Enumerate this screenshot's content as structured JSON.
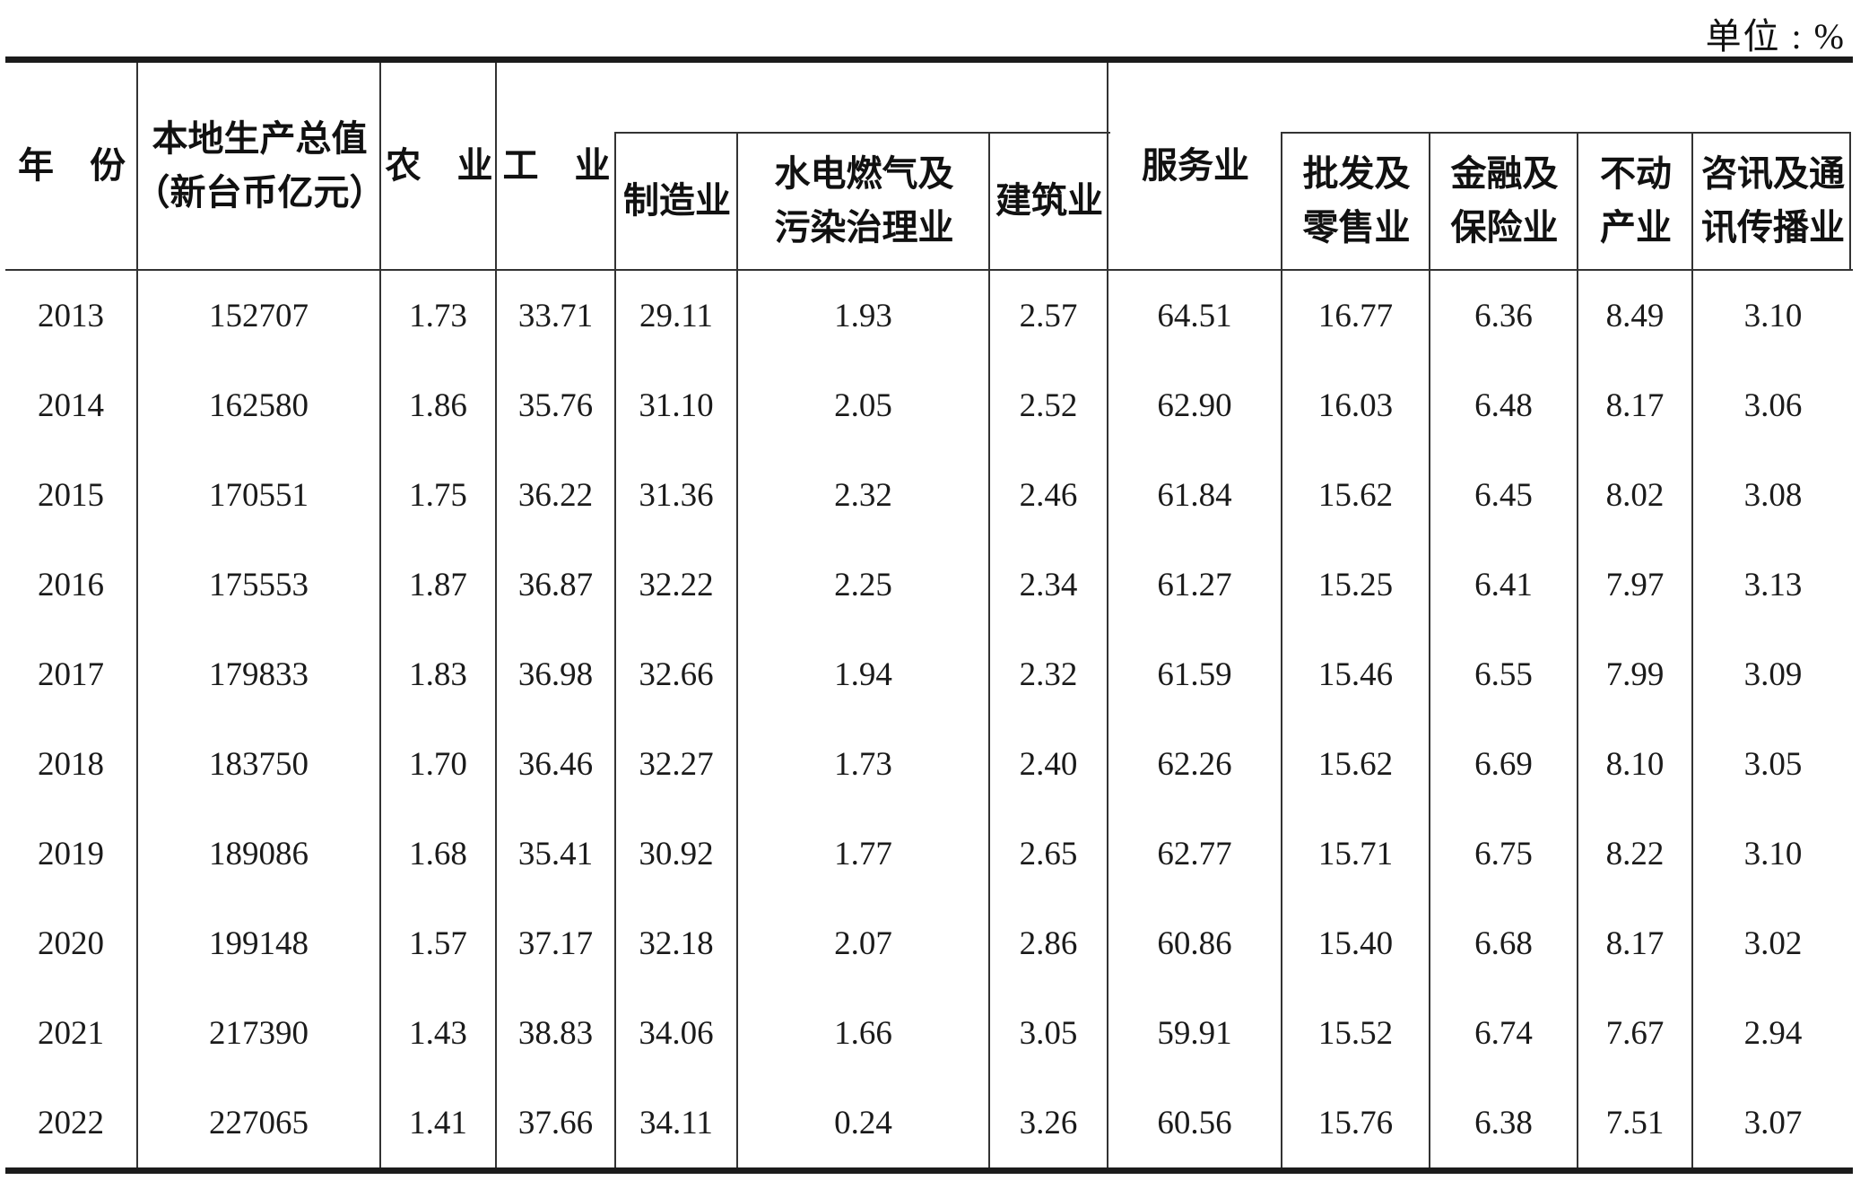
{
  "unit_label": "单位 : %",
  "header": {
    "year": "年　份",
    "gdp_line1": "本地生产总值",
    "gdp_line2": "（新台币亿元）",
    "agriculture": "农　业",
    "industry": "工　业",
    "manufacturing": "制造业",
    "utilities_line1": "水电燃气及",
    "utilities_line2": "污染治理业",
    "construction": "建筑业",
    "services": "服务业",
    "wholesale_line1": "批发及",
    "wholesale_line2": "零售业",
    "finance_line1": "金融及",
    "finance_line2": "保险业",
    "real_estate_line1": "不动",
    "real_estate_line2": "产业",
    "info_comm_line1": "咨讯及通",
    "info_comm_line2": "讯传播业"
  },
  "columns": [
    "年份",
    "本地生产总值（新台币亿元）",
    "农业",
    "工业",
    "制造业",
    "水电燃气及污染治理业",
    "建筑业",
    "服务业",
    "批发及零售业",
    "金融及保险业",
    "不动产业",
    "咨讯及通讯传播业"
  ],
  "rows": [
    [
      "2013",
      "152707",
      "1.73",
      "33.71",
      "29.11",
      "1.93",
      "2.57",
      "64.51",
      "16.77",
      "6.36",
      "8.49",
      "3.10"
    ],
    [
      "2014",
      "162580",
      "1.86",
      "35.76",
      "31.10",
      "2.05",
      "2.52",
      "62.90",
      "16.03",
      "6.48",
      "8.17",
      "3.06"
    ],
    [
      "2015",
      "170551",
      "1.75",
      "36.22",
      "31.36",
      "2.32",
      "2.46",
      "61.84",
      "15.62",
      "6.45",
      "8.02",
      "3.08"
    ],
    [
      "2016",
      "175553",
      "1.87",
      "36.87",
      "32.22",
      "2.25",
      "2.34",
      "61.27",
      "15.25",
      "6.41",
      "7.97",
      "3.13"
    ],
    [
      "2017",
      "179833",
      "1.83",
      "36.98",
      "32.66",
      "1.94",
      "2.32",
      "61.59",
      "15.46",
      "6.55",
      "7.99",
      "3.09"
    ],
    [
      "2018",
      "183750",
      "1.70",
      "36.46",
      "32.27",
      "1.73",
      "2.40",
      "62.26",
      "15.62",
      "6.69",
      "8.10",
      "3.05"
    ],
    [
      "2019",
      "189086",
      "1.68",
      "35.41",
      "30.92",
      "1.77",
      "2.65",
      "62.77",
      "15.71",
      "6.75",
      "8.22",
      "3.10"
    ],
    [
      "2020",
      "199148",
      "1.57",
      "37.17",
      "32.18",
      "2.07",
      "2.86",
      "60.86",
      "15.40",
      "6.68",
      "8.17",
      "3.02"
    ],
    [
      "2021",
      "217390",
      "1.43",
      "38.83",
      "34.06",
      "1.66",
      "3.05",
      "59.91",
      "15.52",
      "6.74",
      "7.67",
      "2.94"
    ],
    [
      "2022",
      "227065",
      "1.41",
      "37.66",
      "34.11",
      "0.24",
      "3.26",
      "60.56",
      "15.76",
      "6.38",
      "7.51",
      "3.07"
    ]
  ],
  "colors": {
    "thin_line": "#333333",
    "thick_line": "#1b1b1b",
    "text": "#1a1a1a",
    "background": "#ffffff"
  }
}
